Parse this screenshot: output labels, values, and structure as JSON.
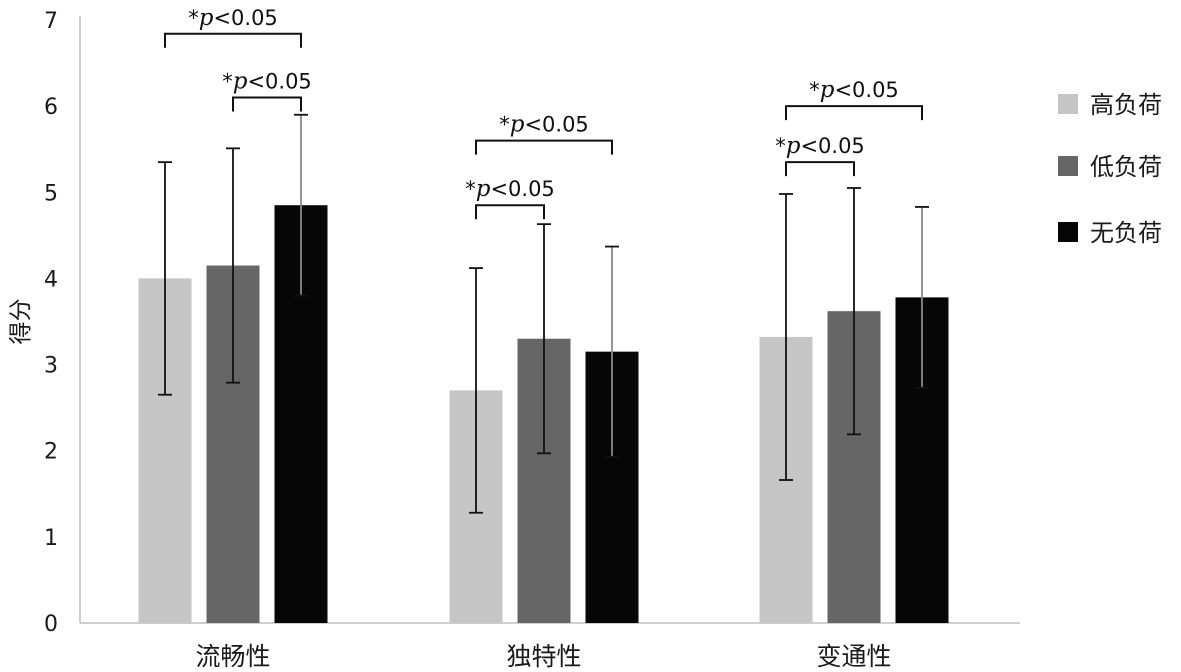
{
  "chart_data": {
    "type": "bar",
    "title": "",
    "xlabel": "",
    "ylabel": "得分",
    "ylim": [
      0,
      7
    ],
    "yticks": [
      "0",
      "1",
      "2",
      "3",
      "4",
      "5",
      "6",
      "7"
    ],
    "grid": false,
    "legend_position": "right",
    "categories": [
      "流畅性",
      "独特性",
      "变通性"
    ],
    "series": [
      {
        "name": "高负荷",
        "color": "#c6c6c6",
        "values": [
          4.0,
          2.7,
          3.32
        ],
        "errors": [
          1.35,
          1.42,
          1.66
        ]
      },
      {
        "name": "低负荷",
        "color": "#666666",
        "values": [
          4.15,
          3.3,
          3.62
        ],
        "errors": [
          1.36,
          1.33,
          1.43
        ]
      },
      {
        "name": "无负荷",
        "color": "#060606",
        "values": [
          4.85,
          3.15,
          3.78
        ],
        "errors": [
          1.05,
          1.22,
          1.05
        ]
      }
    ],
    "significance": [
      {
        "category": 0,
        "from": 0,
        "to": 2,
        "y": 6.84,
        "text": "*p<0.05"
      },
      {
        "category": 0,
        "from": 1,
        "to": 2,
        "y": 6.1,
        "text": "*p<0.05"
      },
      {
        "category": 1,
        "from": 0,
        "to": 2,
        "y": 5.6,
        "text": "*p<0.05"
      },
      {
        "category": 1,
        "from": 0,
        "to": 1,
        "y": 4.85,
        "text": "*p<0.05"
      },
      {
        "category": 2,
        "from": 0,
        "to": 2,
        "y": 6.0,
        "text": "*p<0.05"
      },
      {
        "category": 2,
        "from": 0,
        "to": 1,
        "y": 5.35,
        "text": "*p<0.05"
      }
    ]
  }
}
